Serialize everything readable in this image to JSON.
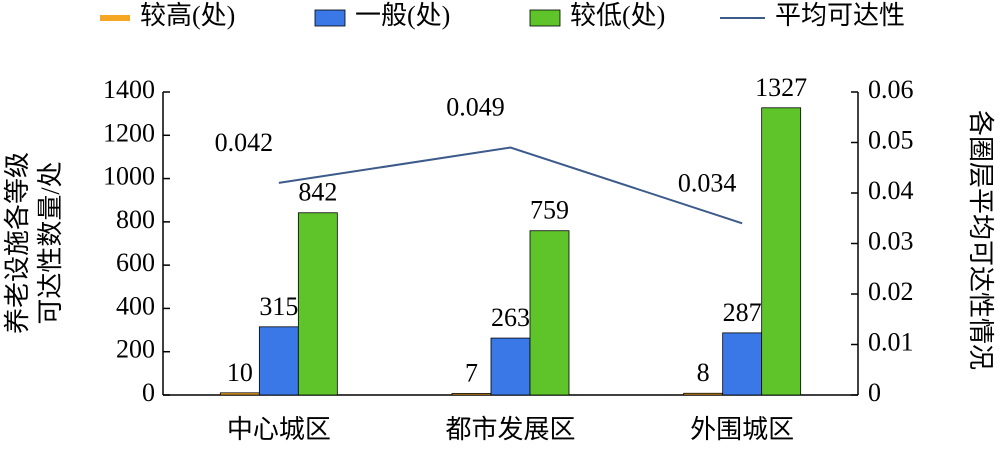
{
  "chart_data": {
    "type": "bar",
    "categories": [
      "中心城区",
      "都市发展区",
      "外围城区"
    ],
    "series": [
      {
        "name": "较高(处)",
        "color": "#f5a623",
        "values": [
          10,
          7,
          8
        ]
      },
      {
        "name": "一般(处)",
        "color": "#3b78e7",
        "values": [
          315,
          263,
          287
        ]
      },
      {
        "name": "较低(处)",
        "color": "#5ec42a",
        "values": [
          842,
          759,
          1327
        ]
      },
      {
        "name": "平均可达性",
        "color": "#3c5a8a",
        "type": "line",
        "axis": "y2",
        "values": [
          0.042,
          0.049,
          0.034
        ]
      }
    ],
    "ylabel": [
      "养老设施各等级",
      "可达性数量/处"
    ],
    "y2label": "各圈层平均可达性情况",
    "ylim": [
      0,
      1400
    ],
    "yticks": [
      0,
      200,
      400,
      600,
      800,
      1000,
      1200,
      1400
    ],
    "y2lim": [
      0,
      0.06
    ],
    "y2ticks": [
      0,
      0.01,
      0.02,
      0.03,
      0.04,
      0.05,
      0.06
    ],
    "legend": "top"
  }
}
